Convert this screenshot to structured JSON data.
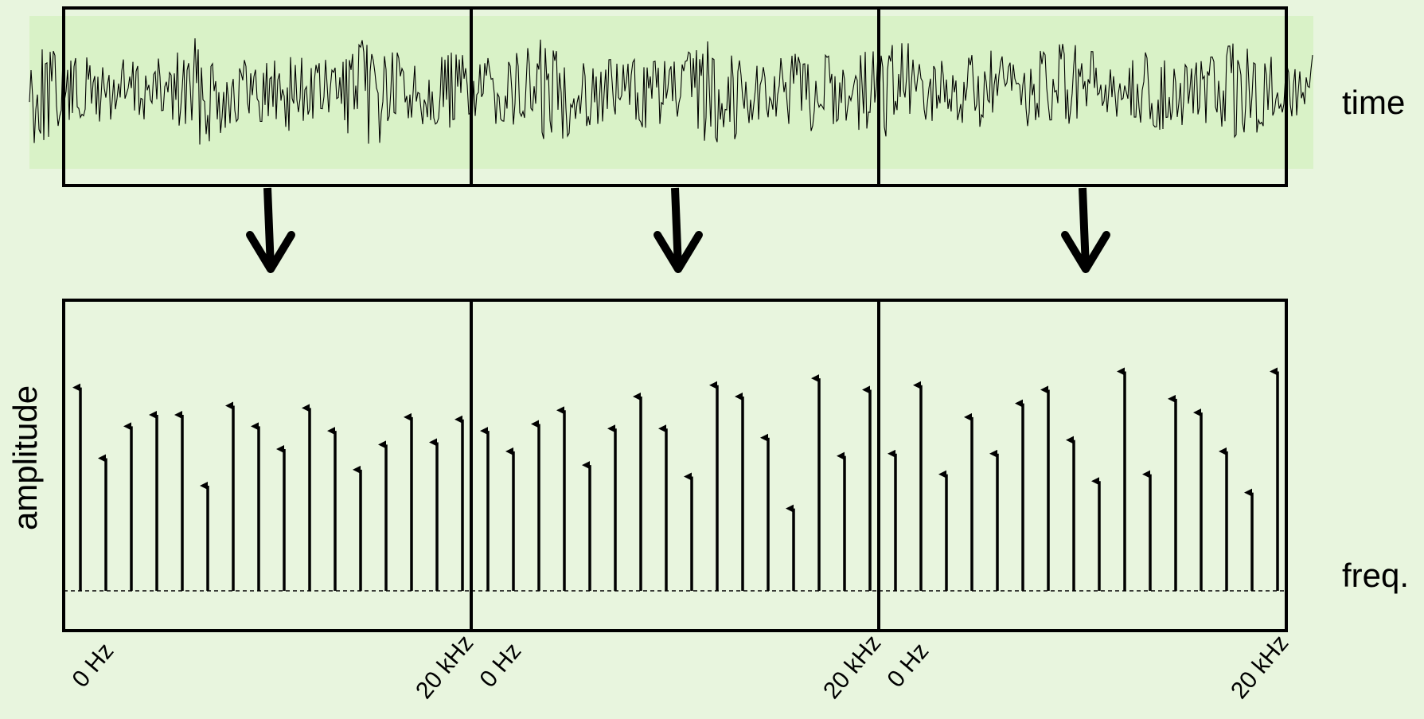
{
  "labels": {
    "time": "time",
    "freq": "freq.",
    "amplitude": "amplitude"
  },
  "colors": {
    "background": "#e8f5de",
    "waveform_band": "#d9f2c7",
    "stroke": "#000000"
  },
  "windows": [
    {
      "freq_start_label": "0 Hz",
      "freq_end_label": "20 kHz",
      "amplitudes": [
        0.89,
        0.58,
        0.72,
        0.77,
        0.77,
        0.46,
        0.81,
        0.72,
        0.62,
        0.8,
        0.7,
        0.53,
        0.64,
        0.76,
        0.65,
        0.75
      ]
    },
    {
      "freq_start_label": "0 Hz",
      "freq_end_label": "20 kHz",
      "amplitudes": [
        0.7,
        0.61,
        0.73,
        0.79,
        0.55,
        0.71,
        0.85,
        0.71,
        0.5,
        0.9,
        0.85,
        0.67,
        0.36,
        0.93,
        0.59,
        0.88
      ]
    },
    {
      "freq_start_label": "0 Hz",
      "freq_end_label": "20 kHz",
      "amplitudes": [
        0.6,
        0.9,
        0.51,
        0.76,
        0.6,
        0.82,
        0.88,
        0.66,
        0.48,
        0.96,
        0.51,
        0.84,
        0.78,
        0.61,
        0.43,
        0.96
      ]
    }
  ]
}
